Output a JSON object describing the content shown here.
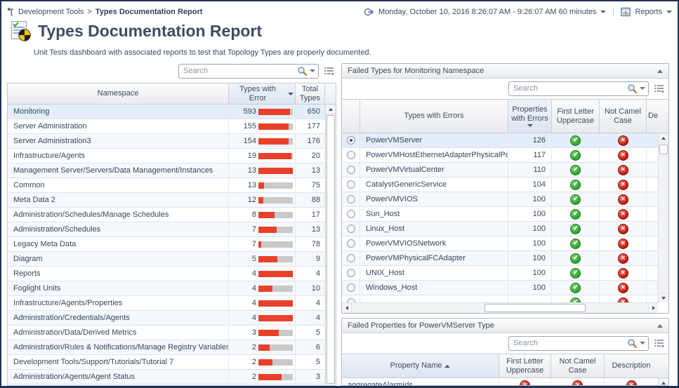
{
  "breadcrumb": {
    "section": "Development Tools",
    "separator": ">",
    "current": "Types Documentation Report"
  },
  "time_selector": {
    "label": "Monday, October 10, 2016 8:26:07 AM - 9:26:07 AM 60 minutes"
  },
  "reports_menu": {
    "label": "Reports"
  },
  "page": {
    "title": "Types Documentation Report",
    "description": "Unit Tests dashboard with associated reports to test that Topology Types are properly documented."
  },
  "namespace_table": {
    "search_placeholder": "Search",
    "headers": {
      "namespace": "Namespace",
      "errors": "Types with Error",
      "total": "Total Types"
    },
    "sort": {
      "column": "Types with Error",
      "direction": "desc"
    },
    "bar_color": "#e8402a",
    "bar_track_color": "#c9c9c9",
    "rows": [
      {
        "namespace": "Monitoring",
        "errors": 593,
        "total": 650,
        "selected": true
      },
      {
        "namespace": "Server Administration",
        "errors": 155,
        "total": 177
      },
      {
        "namespace": "Server Administration3",
        "errors": 154,
        "total": 176
      },
      {
        "namespace": "Infrastructure/Agents",
        "errors": 19,
        "total": 20
      },
      {
        "namespace": "Management Server/Servers/Data Management/Instances",
        "errors": 13,
        "total": 13
      },
      {
        "namespace": "Common",
        "errors": 13,
        "total": 75
      },
      {
        "namespace": "Meta Data 2",
        "errors": 12,
        "total": 88
      },
      {
        "namespace": "Administration/Schedules/Manage Schedules",
        "errors": 8,
        "total": 17
      },
      {
        "namespace": "Administration/Schedules",
        "errors": 7,
        "total": 13
      },
      {
        "namespace": "Legacy Meta Data",
        "errors": 7,
        "total": 78
      },
      {
        "namespace": "Diagram",
        "errors": 5,
        "total": 9
      },
      {
        "namespace": "Reports",
        "errors": 4,
        "total": 4
      },
      {
        "namespace": "Foglight Units",
        "errors": 4,
        "total": 10
      },
      {
        "namespace": "Infrastructure/Agents/Properties",
        "errors": 4,
        "total": 4
      },
      {
        "namespace": "Administration/Credentials/Agents",
        "errors": 4,
        "total": 4
      },
      {
        "namespace": "Administration/Data/Derived Metrics",
        "errors": 3,
        "total": 5
      },
      {
        "namespace": "Administration/Rules & Notifications/Manage Registry Variables",
        "errors": 2,
        "total": 6
      },
      {
        "namespace": "Development Tools/Support/Tutorials/Tutorial 7",
        "errors": 2,
        "total": 5
      },
      {
        "namespace": "Administration/Agents/Agent Status",
        "errors": 2,
        "total": 3
      }
    ]
  },
  "failed_types_panel": {
    "title": "Failed Types for Monitoring Namespace",
    "search_placeholder": "Search",
    "headers": {
      "type": "Types with Errors",
      "props": "Properties with Errors",
      "first_letter": "First Letter Uppercase",
      "camel": "Not Camel Case",
      "description_truncated": "Des"
    },
    "sort": {
      "column": "Properties with Errors",
      "direction": "desc"
    },
    "rows": [
      {
        "type": "PowerVMServer",
        "props": 126,
        "first_letter": "pass",
        "camel": "fail",
        "selected": true
      },
      {
        "type": "PowerVMHostEthernetAdapterPhysicalPort",
        "props": 117,
        "first_letter": "pass",
        "camel": "fail"
      },
      {
        "type": "PowerVMVirtualCenter",
        "props": 110,
        "first_letter": "pass",
        "camel": "fail"
      },
      {
        "type": "CatalystGenericService",
        "props": 104,
        "first_letter": "pass",
        "camel": "fail"
      },
      {
        "type": "PowerVMVIOS",
        "props": 100,
        "first_letter": "pass",
        "camel": "fail"
      },
      {
        "type": "Sun_Host",
        "props": 100,
        "first_letter": "pass",
        "camel": "fail"
      },
      {
        "type": "Linux_Host",
        "props": 100,
        "first_letter": "pass",
        "camel": "fail"
      },
      {
        "type": "PowerVMVIOSNetwork",
        "props": 100,
        "first_letter": "pass",
        "camel": "fail"
      },
      {
        "type": "PowerVMPhysicalFCAdapter",
        "props": 100,
        "first_letter": "pass",
        "camel": "fail"
      },
      {
        "type": "UNIX_Host",
        "props": 100,
        "first_letter": "pass",
        "camel": "fail"
      },
      {
        "type": "Windows_Host",
        "props": 100,
        "first_letter": "pass",
        "camel": "fail"
      },
      {
        "type": "",
        "props": "",
        "first_letter": "pass",
        "camel": "fail",
        "partial": true
      }
    ]
  },
  "failed_properties_panel": {
    "title": "Failed Properties for PowerVMServer Type",
    "search_placeholder": "Search",
    "headers": {
      "property": "Property Name",
      "first_letter": "First Letter Uppercase",
      "camel": "Not Camel Case",
      "description": "Description"
    },
    "sort": {
      "column": "Property Name",
      "direction": "asc"
    },
    "rows": [
      {
        "property": "aggregateAlarmIds",
        "first_letter": "fail",
        "camel": "fail",
        "description": "fail"
      }
    ]
  },
  "status_colors": {
    "pass": "#2e9e36",
    "fail": "#c01508"
  }
}
